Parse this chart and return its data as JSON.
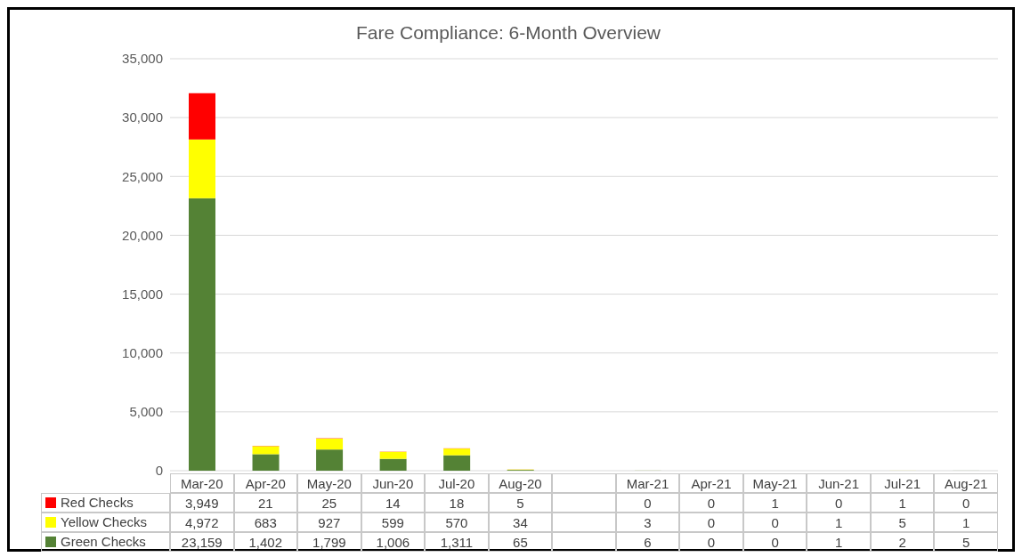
{
  "chart_data": {
    "type": "bar",
    "title": "Fare Compliance:  6-Month Overview",
    "categories": [
      "Mar-20",
      "Apr-20",
      "May-20",
      "Jun-20",
      "Jul-20",
      "Aug-20",
      null,
      "Mar-21",
      "Apr-21",
      "May-21",
      "Jun-21",
      "Jul-21",
      "Aug-21"
    ],
    "series": [
      {
        "name": "Green Checks",
        "color": "#548235",
        "values": [
          23159,
          1402,
          1799,
          1006,
          1311,
          65,
          null,
          6,
          0,
          0,
          1,
          2,
          5
        ],
        "value_labels": [
          "23,159",
          "1,402",
          "1,799",
          "1,006",
          "1,311",
          "65",
          null,
          "6",
          "0",
          "0",
          "1",
          "2",
          "5"
        ]
      },
      {
        "name": "Yellow Checks",
        "color": "#ffff00",
        "values": [
          4972,
          683,
          927,
          599,
          570,
          34,
          null,
          3,
          0,
          0,
          1,
          5,
          1
        ],
        "value_labels": [
          "4,972",
          "683",
          "927",
          "599",
          "570",
          "34",
          null,
          "3",
          "0",
          "0",
          "1",
          "5",
          "1"
        ]
      },
      {
        "name": "Red Checks",
        "color": "#ff0000",
        "values": [
          3949,
          21,
          25,
          14,
          18,
          5,
          null,
          0,
          0,
          1,
          0,
          1,
          0
        ],
        "value_labels": [
          "3,949",
          "21",
          "25",
          "14",
          "18",
          "5",
          null,
          "0",
          "0",
          "1",
          "0",
          "1",
          "0"
        ]
      }
    ],
    "stacked": true,
    "ylim": [
      0,
      35000
    ],
    "yticks": [
      0,
      {
        "value": 5000,
        "label": "5,000"
      },
      {
        "value": 10000,
        "label": "10,000"
      },
      {
        "value": 15000,
        "label": "15,000"
      },
      {
        "value": 20000,
        "label": "20,000"
      },
      {
        "value": 25000,
        "label": "25,000"
      },
      {
        "value": 30000,
        "label": "30,000"
      },
      {
        "value": 35000,
        "label": "35,000"
      }
    ],
    "grid": "y",
    "legend": "bottom"
  }
}
